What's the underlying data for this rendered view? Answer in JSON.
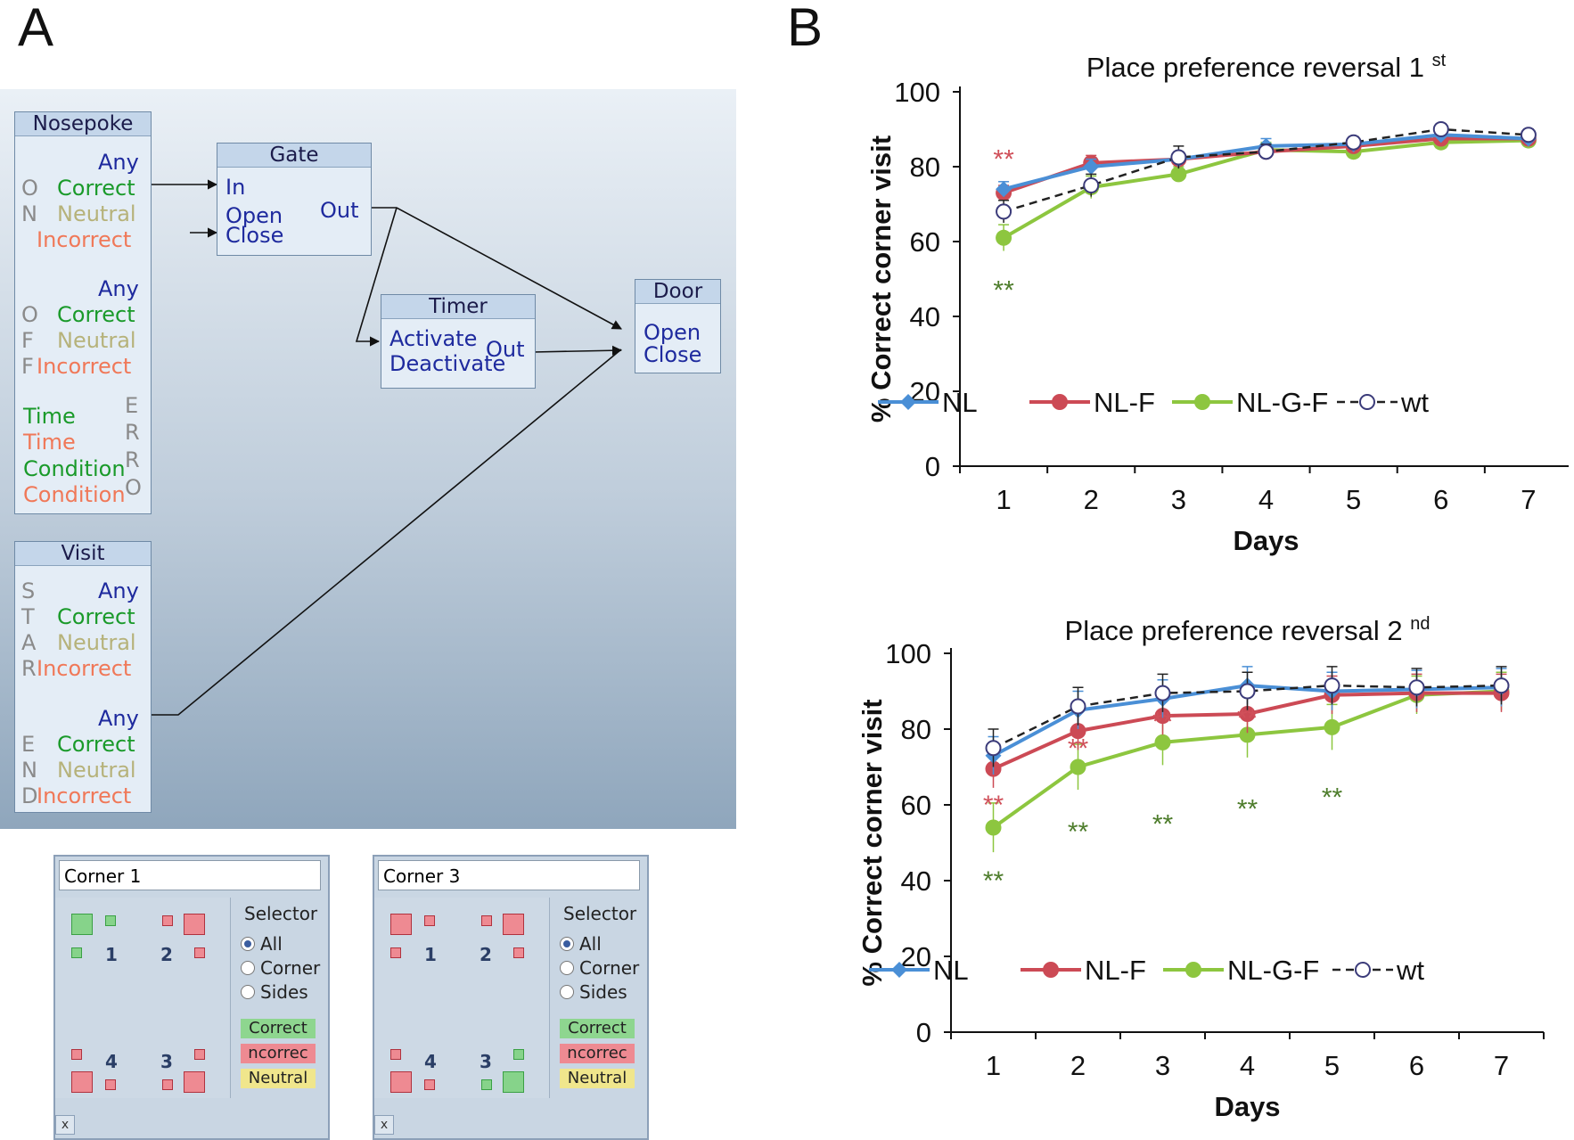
{
  "labels": {
    "panelA": "A",
    "panelB": "B"
  },
  "flow": {
    "nosepoke": {
      "title": "Nosepoke",
      "on_items": [
        "Any",
        "Correct",
        "Neutral",
        "Incorrect"
      ],
      "on_letters": [
        "O",
        "N"
      ],
      "off_items": [
        "Any",
        "Correct",
        "Neutral",
        "Incorrect"
      ],
      "off_letters": [
        "O",
        "F",
        "F"
      ],
      "err_items": [
        "Time",
        "Time",
        "Condition",
        "Condition"
      ],
      "err_letters": [
        "E",
        "R",
        "R",
        "O"
      ]
    },
    "visit": {
      "title": "Visit",
      "start_items": [
        "Any",
        "Correct",
        "Neutral",
        "Incorrect"
      ],
      "start_letters": [
        "S",
        "T",
        "A",
        "R"
      ],
      "end_items": [
        "Any",
        "Correct",
        "Neutral",
        "Incorrect"
      ],
      "end_letters": [
        "E",
        "N",
        "D"
      ]
    },
    "gate": {
      "title": "Gate",
      "in": "In",
      "open": "Open",
      "close": "Close",
      "out": "Out"
    },
    "timer": {
      "title": "Timer",
      "activate": "Activate",
      "deactivate": "Deactivate",
      "out": "Out"
    },
    "door": {
      "title": "Door",
      "open": "Open",
      "close": "Close"
    }
  },
  "selectors": [
    {
      "name": "Corner 1",
      "header": "Selector",
      "options": [
        "All",
        "Corner",
        "Sides"
      ],
      "chips": [
        "Correct",
        "ncorrec",
        "Neutral"
      ],
      "corners": [
        "1",
        "2",
        "4",
        "3"
      ],
      "close": "x",
      "correct_corner": "1"
    },
    {
      "name": "Corner 3",
      "header": "Selector",
      "options": [
        "All",
        "Corner",
        "Sides"
      ],
      "chips": [
        "Correct",
        "ncorrec",
        "Neutral"
      ],
      "corners": [
        "1",
        "2",
        "4",
        "3"
      ],
      "close": "x",
      "correct_corner": "3"
    }
  ],
  "colors": {
    "NL": "#4a8fd6",
    "NL-F": "#cc4a55",
    "NL-G-F": "#8dc63f",
    "wt": "#222222",
    "sig_red": "#d0505a",
    "sig_green": "#4e7d2c"
  },
  "chart_data": [
    {
      "type": "line",
      "title": "Place preference reversal 1",
      "title_sup": "st",
      "xlabel": "Days",
      "ylabel": "% Correct corner visit",
      "x": [
        1,
        2,
        3,
        4,
        5,
        6,
        7
      ],
      "xticks": [
        "1",
        "2",
        "3",
        "4",
        "5",
        "6",
        "7"
      ],
      "yticks": [
        "0",
        "20",
        "40",
        "60",
        "80",
        "100"
      ],
      "ylim": [
        0,
        100
      ],
      "series": [
        {
          "name": "NL",
          "values": [
            74,
            80,
            82,
            85.5,
            86,
            88.5,
            87.5
          ],
          "err": [
            2,
            2,
            2,
            2,
            1.5,
            1.5,
            1.5
          ]
        },
        {
          "name": "NL-F",
          "values": [
            73,
            81,
            82,
            84,
            85.5,
            87.5,
            87.5
          ],
          "err": [
            2,
            2,
            2,
            2,
            1.5,
            1.5,
            1.5
          ]
        },
        {
          "name": "NL-G-F",
          "values": [
            61,
            74.5,
            78,
            84.5,
            84,
            86.5,
            87
          ],
          "err": [
            3.5,
            3,
            2,
            2,
            1.5,
            1.5,
            1.5
          ]
        },
        {
          "name": "wt",
          "values": [
            68,
            75,
            82.5,
            84,
            86.5,
            90,
            88.5
          ],
          "err": [
            3,
            3,
            3,
            2,
            1.5,
            1.5,
            1.5
          ]
        }
      ],
      "annotations": [
        {
          "x": 1,
          "y": 82,
          "text": "**",
          "color": "sig_red"
        },
        {
          "x": 1,
          "y": 47,
          "text": "**",
          "color": "sig_green"
        }
      ],
      "legend": [
        "NL",
        "NL-F",
        "NL-G-F",
        "wt"
      ]
    },
    {
      "type": "line",
      "title": "Place preference reversal 2",
      "title_sup": "nd",
      "xlabel": "Days",
      "ylabel": "% Correct corner visit",
      "x": [
        1,
        2,
        3,
        4,
        5,
        6,
        7
      ],
      "xticks": [
        "1",
        "2",
        "3",
        "4",
        "5",
        "6",
        "7"
      ],
      "yticks": [
        "0",
        "20",
        "40",
        "60",
        "80",
        "100"
      ],
      "ylim": [
        0,
        100
      ],
      "series": [
        {
          "name": "NL",
          "values": [
            73,
            85,
            88,
            91.5,
            90,
            90.5,
            91
          ],
          "err": [
            5,
            5,
            5,
            5,
            5,
            5,
            5
          ]
        },
        {
          "name": "NL-F",
          "values": [
            69.5,
            79.5,
            83.5,
            84,
            89,
            89.5,
            89.5
          ],
          "err": [
            5,
            5,
            5,
            5,
            5,
            5,
            5
          ]
        },
        {
          "name": "NL-G-F",
          "values": [
            54,
            70,
            76.5,
            78.5,
            80.5,
            89,
            90
          ],
          "err": [
            6.5,
            6,
            6,
            6,
            6,
            5,
            5
          ]
        },
        {
          "name": "wt",
          "values": [
            75,
            86,
            89.5,
            90,
            91.5,
            91,
            91.5
          ],
          "err": [
            5,
            5,
            5,
            5,
            5,
            5,
            5
          ]
        }
      ],
      "annotations": [
        {
          "x": 1,
          "y": 60,
          "text": "**",
          "color": "sig_red"
        },
        {
          "x": 2,
          "y": 75,
          "text": "**",
          "color": "sig_red"
        },
        {
          "x": 3,
          "y": 82,
          "text": "**",
          "color": "sig_red"
        },
        {
          "x": 4,
          "y": 83,
          "text": "**",
          "color": "sig_red"
        },
        {
          "x": 1,
          "y": 40,
          "text": "**",
          "color": "sig_green"
        },
        {
          "x": 2,
          "y": 53,
          "text": "**",
          "color": "sig_green"
        },
        {
          "x": 3,
          "y": 55,
          "text": "**",
          "color": "sig_green"
        },
        {
          "x": 4,
          "y": 59,
          "text": "**",
          "color": "sig_green"
        },
        {
          "x": 5,
          "y": 62,
          "text": "**",
          "color": "sig_green"
        }
      ],
      "legend": [
        "NL",
        "NL-F",
        "NL-G-F",
        "wt"
      ]
    }
  ]
}
